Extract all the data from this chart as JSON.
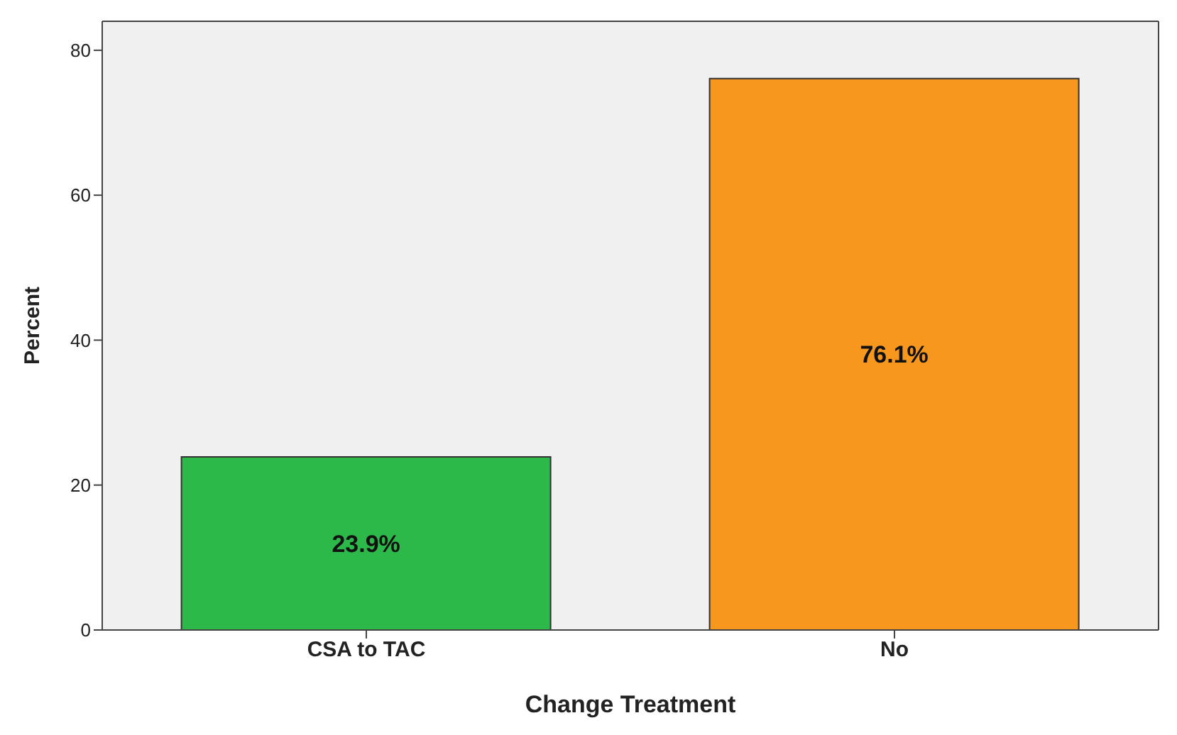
{
  "chart_data": {
    "type": "bar",
    "xlabel": "Change Treatment",
    "ylabel": "Percent",
    "categories": [
      "CSA to TAC",
      "No"
    ],
    "values": [
      23.9,
      76.1
    ],
    "colors": [
      "#2db84a",
      "#f7971e"
    ],
    "value_labels": [
      "23.9%",
      "76.1%"
    ],
    "ylim": [
      0,
      84
    ],
    "yticks": [
      0,
      20,
      40,
      60,
      80
    ],
    "grid": false
  }
}
